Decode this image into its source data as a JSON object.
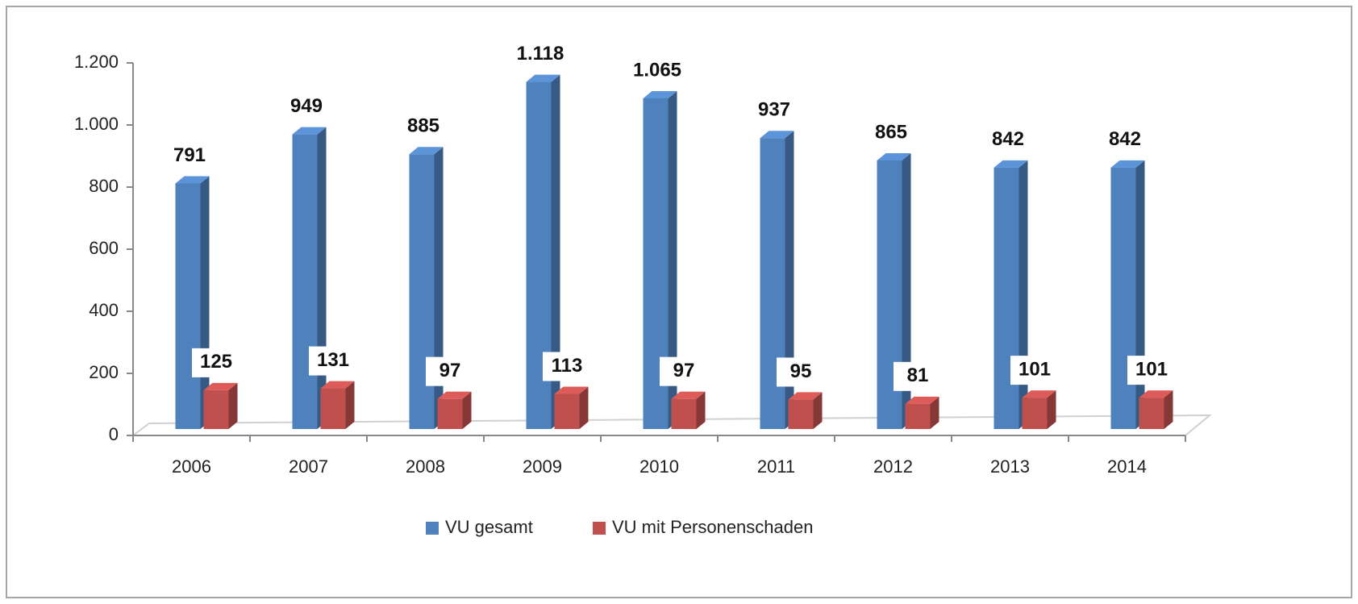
{
  "chart_data": {
    "type": "bar3d",
    "categories": [
      "2006",
      "2007",
      "2008",
      "2009",
      "2010",
      "2011",
      "2012",
      "2013",
      "2014"
    ],
    "series": [
      {
        "name": "VU gesamt",
        "color": "#4f81bd",
        "values": [
          791,
          949,
          885,
          1118,
          1065,
          937,
          865,
          842,
          842
        ],
        "value_labels": [
          "791",
          "949",
          "885",
          "1.118",
          "1.065",
          "937",
          "865",
          "842",
          "842"
        ]
      },
      {
        "name": "VU mit Personenschaden",
        "color": "#c0504d",
        "values": [
          125,
          131,
          97,
          113,
          97,
          95,
          81,
          101,
          101
        ]
      }
    ],
    "ylim": [
      0,
      1200
    ],
    "yticks": [
      0,
      200,
      400,
      600,
      800,
      {
        "value": 1000,
        "label": "1.000"
      },
      {
        "value": 1200,
        "label": "1.200"
      }
    ],
    "legend": "bottom"
  }
}
